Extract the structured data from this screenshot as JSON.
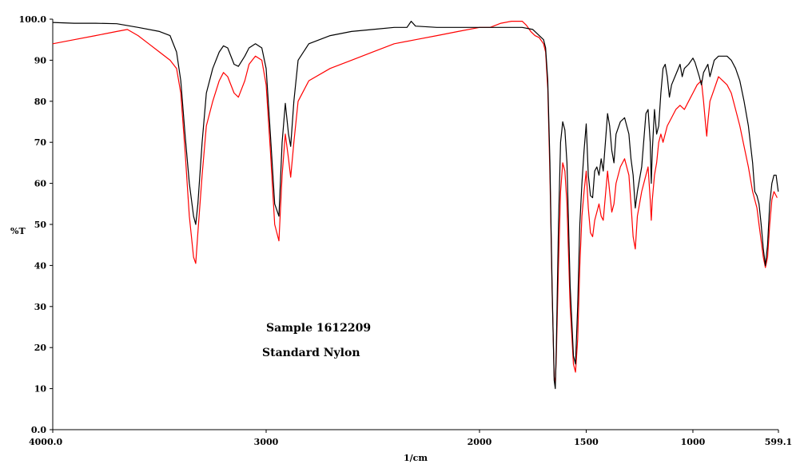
{
  "chart_data": {
    "type": "line",
    "xlabel": "1/cm",
    "ylabel": "%T",
    "xlim": [
      4000.0,
      599.1
    ],
    "ylim": [
      0,
      100
    ],
    "x_reversed": true,
    "grid": false,
    "x_ticks": [
      {
        "value": 4000.0,
        "label": "4000.0"
      },
      {
        "value": 3000,
        "label": "3000"
      },
      {
        "value": 2000,
        "label": "2000"
      },
      {
        "value": 1500,
        "label": "1500"
      },
      {
        "value": 1000,
        "label": "1000"
      },
      {
        "value": 599.1,
        "label": "599.1"
      }
    ],
    "y_ticks": [
      {
        "value": 0,
        "label": "0.0"
      },
      {
        "value": 10,
        "label": "10"
      },
      {
        "value": 20,
        "label": "20"
      },
      {
        "value": 30,
        "label": "30"
      },
      {
        "value": 40,
        "label": "40"
      },
      {
        "value": 50,
        "label": "50"
      },
      {
        "value": 60,
        "label": "60"
      },
      {
        "value": 70,
        "label": "70"
      },
      {
        "value": 80,
        "label": "80"
      },
      {
        "value": 90,
        "label": "90"
      },
      {
        "value": 100,
        "label": "100.0"
      }
    ],
    "legend_position": "center",
    "series": [
      {
        "name": "Sample 1612209",
        "color": "#000000",
        "points": [
          [
            4000,
            99.2
          ],
          [
            3900,
            99.0
          ],
          [
            3800,
            99.0
          ],
          [
            3700,
            98.9
          ],
          [
            3600,
            98.0
          ],
          [
            3500,
            97.0
          ],
          [
            3450,
            96.0
          ],
          [
            3420,
            92.0
          ],
          [
            3400,
            85.0
          ],
          [
            3380,
            72.0
          ],
          [
            3360,
            60.0
          ],
          [
            3340,
            52.0
          ],
          [
            3330,
            50.0
          ],
          [
            3320,
            55.0
          ],
          [
            3300,
            70.0
          ],
          [
            3280,
            82.0
          ],
          [
            3250,
            88.0
          ],
          [
            3220,
            92.0
          ],
          [
            3200,
            93.5
          ],
          [
            3180,
            93.0
          ],
          [
            3150,
            89.0
          ],
          [
            3130,
            88.5
          ],
          [
            3100,
            91.0
          ],
          [
            3080,
            93.0
          ],
          [
            3050,
            94.0
          ],
          [
            3020,
            93.0
          ],
          [
            3000,
            88.0
          ],
          [
            2980,
            72.0
          ],
          [
            2960,
            55.0
          ],
          [
            2940,
            52.0
          ],
          [
            2925,
            70.0
          ],
          [
            2910,
            79.5
          ],
          [
            2895,
            72.0
          ],
          [
            2885,
            69.0
          ],
          [
            2870,
            80.0
          ],
          [
            2850,
            90.0
          ],
          [
            2800,
            94.0
          ],
          [
            2700,
            96.0
          ],
          [
            2600,
            97.0
          ],
          [
            2500,
            97.5
          ],
          [
            2400,
            98.0
          ],
          [
            2340,
            98.0
          ],
          [
            2320,
            99.5
          ],
          [
            2300,
            98.3
          ],
          [
            2200,
            98.0
          ],
          [
            2100,
            98.0
          ],
          [
            2000,
            98.0
          ],
          [
            1900,
            98.0
          ],
          [
            1800,
            98.0
          ],
          [
            1750,
            97.5
          ],
          [
            1700,
            95.0
          ],
          [
            1690,
            93.0
          ],
          [
            1680,
            85.0
          ],
          [
            1670,
            65.0
          ],
          [
            1660,
            35.0
          ],
          [
            1650,
            12.0
          ],
          [
            1645,
            10.0
          ],
          [
            1640,
            20.0
          ],
          [
            1630,
            50.0
          ],
          [
            1620,
            70.0
          ],
          [
            1610,
            75.0
          ],
          [
            1600,
            73.0
          ],
          [
            1590,
            65.0
          ],
          [
            1575,
            35.0
          ],
          [
            1560,
            18.0
          ],
          [
            1550,
            16.0
          ],
          [
            1540,
            30.0
          ],
          [
            1530,
            50.0
          ],
          [
            1520,
            60.0
          ],
          [
            1510,
            68.0
          ],
          [
            1500,
            74.5
          ],
          [
            1490,
            62.0
          ],
          [
            1480,
            57.0
          ],
          [
            1470,
            56.5
          ],
          [
            1460,
            63.0
          ],
          [
            1450,
            64.0
          ],
          [
            1440,
            62.0
          ],
          [
            1430,
            66.0
          ],
          [
            1420,
            63.0
          ],
          [
            1410,
            70.0
          ],
          [
            1400,
            77.0
          ],
          [
            1390,
            74.0
          ],
          [
            1380,
            68.0
          ],
          [
            1370,
            65.0
          ],
          [
            1360,
            72.0
          ],
          [
            1340,
            75.0
          ],
          [
            1320,
            76.0
          ],
          [
            1300,
            72.0
          ],
          [
            1290,
            66.0
          ],
          [
            1280,
            62.0
          ],
          [
            1270,
            54.0
          ],
          [
            1260,
            58.0
          ],
          [
            1240,
            64.0
          ],
          [
            1220,
            77.0
          ],
          [
            1210,
            78.0
          ],
          [
            1200,
            70.0
          ],
          [
            1195,
            60.0
          ],
          [
            1190,
            68.0
          ],
          [
            1180,
            78.0
          ],
          [
            1170,
            72.0
          ],
          [
            1160,
            74.0
          ],
          [
            1150,
            82.0
          ],
          [
            1140,
            88.0
          ],
          [
            1130,
            89.0
          ],
          [
            1120,
            86.0
          ],
          [
            1110,
            81.0
          ],
          [
            1100,
            84.0
          ],
          [
            1080,
            86.5
          ],
          [
            1060,
            89.0
          ],
          [
            1050,
            86.0
          ],
          [
            1040,
            88.0
          ],
          [
            1020,
            89.0
          ],
          [
            1000,
            90.5
          ],
          [
            990,
            89.5
          ],
          [
            970,
            86.0
          ],
          [
            960,
            84.0
          ],
          [
            950,
            87.0
          ],
          [
            940,
            88.0
          ],
          [
            930,
            89.0
          ],
          [
            920,
            86.0
          ],
          [
            910,
            88.0
          ],
          [
            900,
            90.0
          ],
          [
            880,
            91.0
          ],
          [
            860,
            91.0
          ],
          [
            840,
            91.0
          ],
          [
            820,
            90.0
          ],
          [
            800,
            88.0
          ],
          [
            780,
            85.0
          ],
          [
            760,
            80.0
          ],
          [
            740,
            74.0
          ],
          [
            720,
            65.0
          ],
          [
            710,
            58.0
          ],
          [
            700,
            57.0
          ],
          [
            690,
            55.0
          ],
          [
            680,
            50.0
          ],
          [
            670,
            44.0
          ],
          [
            660,
            40.0
          ],
          [
            650,
            45.0
          ],
          [
            640,
            55.0
          ],
          [
            630,
            60.0
          ],
          [
            620,
            62.0
          ],
          [
            610,
            62.0
          ],
          [
            605,
            60.0
          ],
          [
            600,
            58.0
          ]
        ]
      },
      {
        "name": "Standard Nylon",
        "color": "#ff0000",
        "points": [
          [
            4000,
            94.0
          ],
          [
            3900,
            95.0
          ],
          [
            3800,
            96.0
          ],
          [
            3700,
            97.0
          ],
          [
            3650,
            97.5
          ],
          [
            3600,
            96.0
          ],
          [
            3550,
            94.0
          ],
          [
            3500,
            92.0
          ],
          [
            3450,
            90.0
          ],
          [
            3420,
            88.0
          ],
          [
            3400,
            82.0
          ],
          [
            3380,
            68.0
          ],
          [
            3360,
            52.0
          ],
          [
            3340,
            42.0
          ],
          [
            3330,
            40.5
          ],
          [
            3320,
            48.0
          ],
          [
            3300,
            62.0
          ],
          [
            3280,
            74.0
          ],
          [
            3250,
            80.0
          ],
          [
            3220,
            85.0
          ],
          [
            3200,
            87.0
          ],
          [
            3180,
            86.0
          ],
          [
            3150,
            82.0
          ],
          [
            3130,
            81.0
          ],
          [
            3100,
            85.0
          ],
          [
            3080,
            89.0
          ],
          [
            3050,
            91.0
          ],
          [
            3020,
            90.0
          ],
          [
            3000,
            84.0
          ],
          [
            2980,
            68.0
          ],
          [
            2960,
            50.0
          ],
          [
            2940,
            46.0
          ],
          [
            2925,
            62.0
          ],
          [
            2910,
            72.0
          ],
          [
            2895,
            66.0
          ],
          [
            2885,
            61.5
          ],
          [
            2870,
            70.0
          ],
          [
            2850,
            80.0
          ],
          [
            2800,
            85.0
          ],
          [
            2700,
            88.0
          ],
          [
            2600,
            90.0
          ],
          [
            2500,
            92.0
          ],
          [
            2400,
            94.0
          ],
          [
            2300,
            95.0
          ],
          [
            2200,
            96.0
          ],
          [
            2100,
            97.0
          ],
          [
            2000,
            98.0
          ],
          [
            1950,
            98.0
          ],
          [
            1900,
            99.0
          ],
          [
            1850,
            99.5
          ],
          [
            1800,
            99.5
          ],
          [
            1780,
            98.5
          ],
          [
            1760,
            97.0
          ],
          [
            1740,
            96.0
          ],
          [
            1720,
            95.5
          ],
          [
            1700,
            94.0
          ],
          [
            1690,
            92.0
          ],
          [
            1680,
            83.0
          ],
          [
            1670,
            62.0
          ],
          [
            1660,
            34.0
          ],
          [
            1650,
            13.0
          ],
          [
            1645,
            11.0
          ],
          [
            1640,
            18.0
          ],
          [
            1630,
            40.0
          ],
          [
            1620,
            58.0
          ],
          [
            1610,
            65.0
          ],
          [
            1600,
            63.0
          ],
          [
            1590,
            55.0
          ],
          [
            1575,
            30.0
          ],
          [
            1560,
            16.0
          ],
          [
            1550,
            14.0
          ],
          [
            1540,
            22.0
          ],
          [
            1530,
            40.0
          ],
          [
            1520,
            52.0
          ],
          [
            1510,
            58.0
          ],
          [
            1500,
            63.0
          ],
          [
            1490,
            54.0
          ],
          [
            1480,
            48.0
          ],
          [
            1470,
            47.0
          ],
          [
            1460,
            51.0
          ],
          [
            1450,
            53.0
          ],
          [
            1440,
            55.0
          ],
          [
            1430,
            52.0
          ],
          [
            1420,
            51.0
          ],
          [
            1410,
            57.0
          ],
          [
            1400,
            63.0
          ],
          [
            1390,
            58.0
          ],
          [
            1380,
            53.0
          ],
          [
            1370,
            55.0
          ],
          [
            1360,
            60.0
          ],
          [
            1340,
            64.0
          ],
          [
            1320,
            66.0
          ],
          [
            1300,
            62.0
          ],
          [
            1290,
            55.0
          ],
          [
            1280,
            47.0
          ],
          [
            1270,
            44.0
          ],
          [
            1260,
            52.0
          ],
          [
            1240,
            58.0
          ],
          [
            1220,
            62.0
          ],
          [
            1210,
            64.0
          ],
          [
            1200,
            56.0
          ],
          [
            1195,
            51.0
          ],
          [
            1190,
            56.0
          ],
          [
            1180,
            62.0
          ],
          [
            1170,
            65.0
          ],
          [
            1160,
            70.0
          ],
          [
            1150,
            72.0
          ],
          [
            1140,
            70.0
          ],
          [
            1120,
            74.0
          ],
          [
            1100,
            76.0
          ],
          [
            1080,
            78.0
          ],
          [
            1060,
            79.0
          ],
          [
            1040,
            78.0
          ],
          [
            1020,
            80.0
          ],
          [
            1000,
            82.0
          ],
          [
            980,
            84.0
          ],
          [
            960,
            85.0
          ],
          [
            950,
            80.0
          ],
          [
            940,
            74.0
          ],
          [
            935,
            71.5
          ],
          [
            930,
            75.0
          ],
          [
            920,
            80.0
          ],
          [
            900,
            83.0
          ],
          [
            880,
            86.0
          ],
          [
            860,
            85.0
          ],
          [
            840,
            84.0
          ],
          [
            820,
            82.0
          ],
          [
            800,
            78.0
          ],
          [
            780,
            74.0
          ],
          [
            760,
            69.0
          ],
          [
            740,
            64.0
          ],
          [
            720,
            58.0
          ],
          [
            700,
            54.0
          ],
          [
            690,
            50.0
          ],
          [
            680,
            46.0
          ],
          [
            670,
            42.0
          ],
          [
            660,
            39.5
          ],
          [
            650,
            42.0
          ],
          [
            640,
            50.0
          ],
          [
            630,
            56.0
          ],
          [
            620,
            58.0
          ],
          [
            610,
            57.0
          ],
          [
            605,
            56.5
          ]
        ]
      }
    ]
  }
}
